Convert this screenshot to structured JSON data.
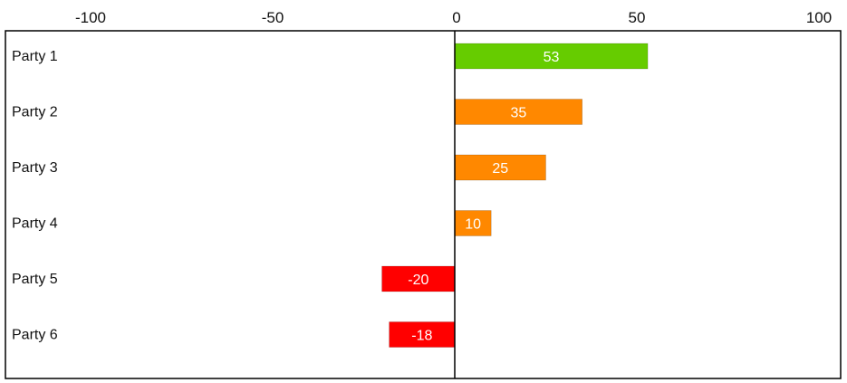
{
  "chart_data": {
    "type": "bar",
    "orientation": "horizontal",
    "title": "",
    "xlabel": "",
    "ylabel": "",
    "xlim": [
      -100,
      100
    ],
    "x_ticks": [
      -100,
      -50,
      0,
      50,
      100
    ],
    "x_tick_labels": [
      "-100",
      "-50",
      "0",
      "50",
      "100"
    ],
    "x_axis_position": "top",
    "grid": false,
    "legend": "none",
    "categories": [
      "Party 1",
      "Party 2",
      "Party 3",
      "Party 4",
      "Party 5",
      "Party 6"
    ],
    "values": [
      53,
      35,
      25,
      10,
      -20,
      -18
    ],
    "value_labels": [
      "53",
      "35",
      "25",
      "10",
      "-20",
      "-18"
    ],
    "bar_colors": [
      "#66cc00",
      "#ff8800",
      "#ff8800",
      "#ff8800",
      "#ff0000",
      "#ff0000"
    ]
  }
}
